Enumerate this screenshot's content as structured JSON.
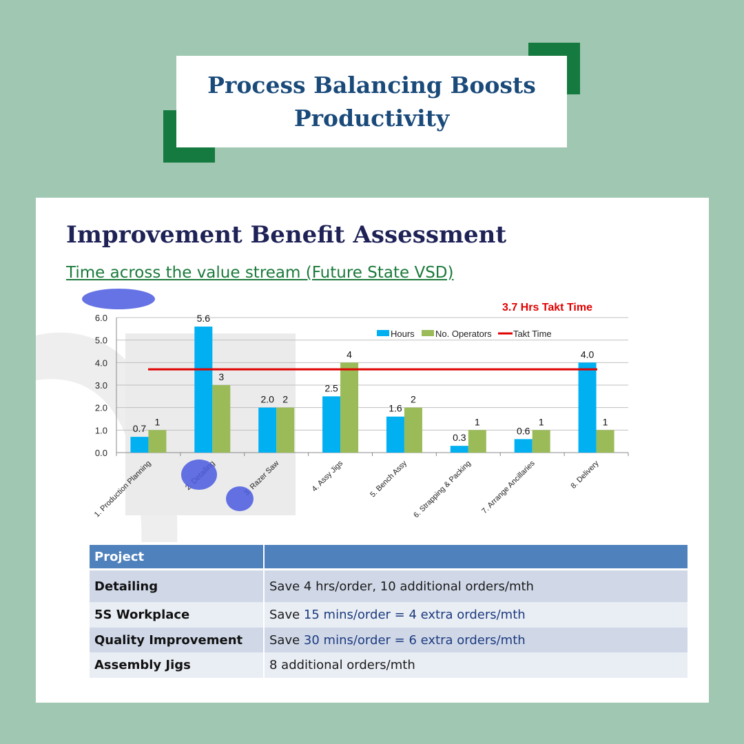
{
  "banner": {
    "title": "Process Balancing Boosts Productivity"
  },
  "slide": {
    "title": "Improvement Benefit Assessment",
    "subtitle": "Time across the value stream (Future State VSD)"
  },
  "colors": {
    "background": "#a0c7b1",
    "accent": "#157a3f",
    "hours": "#00b0f0",
    "operators": "#9bbb59",
    "takt": "#e00000",
    "table_header": "#4f81bd"
  },
  "chart_data": {
    "type": "bar",
    "categories": [
      "1. Production Planning",
      "2. Detailing",
      "3. Razer Saw",
      "4. Assy Jigs",
      "5. Bench Assy",
      "6. Strapping & Packing",
      "7. Arrange Ancillaries",
      "8. Delivery"
    ],
    "series": [
      {
        "name": "Hours",
        "values": [
          0.7,
          5.6,
          2.0,
          2.5,
          1.6,
          0.3,
          0.6,
          4.0
        ],
        "labels": [
          "0.7",
          "5.6",
          "2.0",
          "2.5",
          "1.6",
          "0.3",
          "0.6",
          "4.0"
        ]
      },
      {
        "name": "No. Operators",
        "values": [
          1,
          3,
          2,
          4,
          2,
          1,
          1,
          1
        ],
        "labels": [
          "1",
          "3",
          "2",
          "4",
          "2",
          "1",
          "1",
          "1"
        ]
      }
    ],
    "reference_line": {
      "name": "Takt Time",
      "value": 3.7
    },
    "annotation": "3.7 Hrs Takt Time",
    "y_ticks": [
      "0.0",
      "1.0",
      "2.0",
      "3.0",
      "4.0",
      "5.0",
      "6.0"
    ],
    "ylim": [
      0,
      6
    ],
    "grid": true,
    "legend_position": "top-right"
  },
  "table": {
    "header": [
      "Project",
      ""
    ],
    "rows": [
      {
        "project": "Detailing",
        "plain": "Save 4 hrs/order, 10 additional orders/mth",
        "highlight": ""
      },
      {
        "project": "5S Workplace",
        "plain": "Save ",
        "highlight": "15 mins/order = 4 extra orders/mth"
      },
      {
        "project": "Quality Improvement",
        "plain": "Save ",
        "highlight": "30 mins/order = 6 extra orders/mth"
      },
      {
        "project": "Assembly Jigs",
        "plain": "8 additional orders/mth",
        "highlight": ""
      }
    ]
  }
}
